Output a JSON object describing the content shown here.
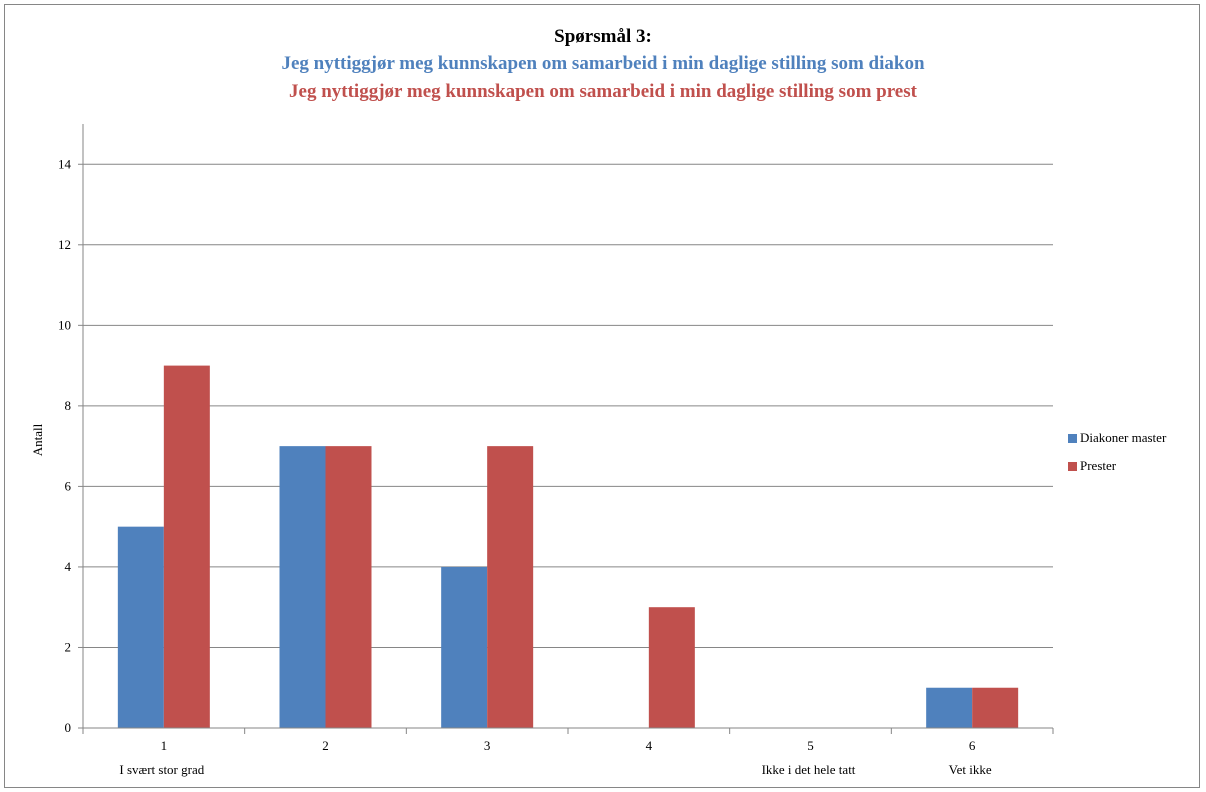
{
  "chart_data": {
    "type": "bar",
    "title": "Spørsmål 3:",
    "subtitle_lines": [
      {
        "text": "Jeg nyttiggjør meg kunnskapen om samarbeid i min daglige stilling som diakon",
        "color": "#4F81BD"
      },
      {
        "text": "Jeg nyttiggjør meg kunnskapen om samarbeid i min daglige stilling som prest",
        "color": "#C0504D"
      }
    ],
    "categories": [
      "1",
      "2",
      "3",
      "4",
      "5",
      "6"
    ],
    "category_sublabels": [
      "I svært stor grad",
      "",
      "",
      "",
      "Ikke i det hele tatt",
      "Vet ikke"
    ],
    "series": [
      {
        "name": "Diakoner master",
        "color": "#4F81BD",
        "values": [
          5,
          7,
          4,
          0,
          0,
          1
        ]
      },
      {
        "name": "Prester",
        "color": "#C0504D",
        "values": [
          9,
          7,
          7,
          3,
          0,
          1
        ]
      }
    ],
    "xlabel": "",
    "ylabel": "Antall",
    "ylim": [
      0,
      15
    ],
    "yticks": [
      0,
      2,
      4,
      6,
      8,
      10,
      12,
      14
    ],
    "grid": true,
    "legend_position": "right"
  }
}
